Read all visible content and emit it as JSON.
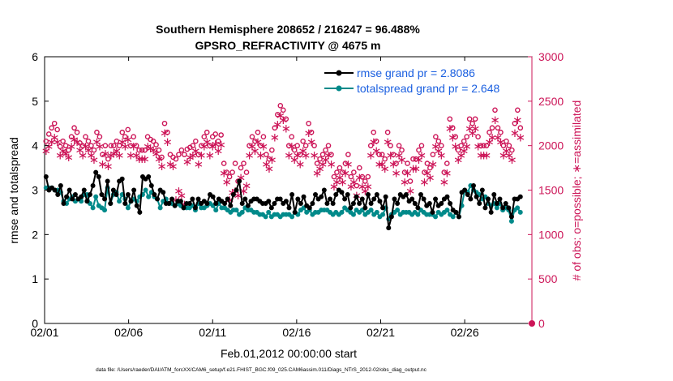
{
  "colors": {
    "background": "#ffffff",
    "left_axis": "#000000",
    "right_axis": "#cc1457",
    "rmse_line": "#000000",
    "spread_line": "#008a8a",
    "obs_marker": "#cc1457",
    "legend_text": "#1a5fe0"
  },
  "chart_data": {
    "type": "line",
    "title_line1": "Southern Hemisphere 208652 / 216247 = 96.488%",
    "title_line2": "GPSRO_REFRACTIVITY @ 4675 m",
    "xlabel": "Feb.01,2012 00:00:00 start",
    "ylabel_left": "rmse and totalspread",
    "ylabel_right": "# of obs: o=possible; ∗=assimilated",
    "footer": "data file: /Users/raeder/DAI/ATM_forcXX/CAM6_setup/f.e21.FHIST_BGC.f09_025.CAM6assim.011/Diags_NTrS_2012-02/obs_diag_output.nc",
    "xlim": [
      0,
      29
    ],
    "ylim_left": [
      0,
      6
    ],
    "ylim_right": [
      0,
      3000
    ],
    "grid": false,
    "legend_position": "top-right",
    "x_tick_values": [
      0,
      5,
      10,
      15,
      20,
      25
    ],
    "x_tick_labels": [
      "02/01",
      "02/06",
      "02/11",
      "02/16",
      "02/21",
      "02/26"
    ],
    "y_left_ticks": [
      "0",
      "1",
      "2",
      "3",
      "4",
      "5",
      "6"
    ],
    "y_right_ticks": [
      "0",
      "500",
      "1000",
      "1500",
      "2000",
      "2500",
      "3000"
    ],
    "series": [
      {
        "name": "rmse grand pr = 2.8086",
        "axis": "left",
        "marker": "filled-circle",
        "values": [
          3.3,
          3.0,
          3.05,
          3.0,
          2.9,
          3.1,
          2.7,
          2.85,
          3.0,
          2.8,
          2.9,
          2.8,
          2.85,
          3.0,
          2.75,
          2.9,
          3.1,
          3.4,
          3.3,
          2.9,
          2.8,
          3.2,
          2.7,
          3.0,
          2.9,
          3.2,
          3.25,
          2.7,
          2.9,
          2.75,
          3.0,
          2.65,
          2.5,
          3.3,
          3.25,
          3.3,
          3.1,
          2.9,
          2.8,
          3.0,
          2.95,
          2.7,
          2.7,
          2.8,
          2.65,
          2.75,
          2.75,
          2.6,
          2.7,
          2.7,
          2.8,
          2.6,
          2.8,
          2.7,
          2.75,
          2.7,
          2.9,
          2.85,
          2.7,
          2.8,
          2.75,
          2.7,
          2.8,
          2.65,
          2.9,
          3.0,
          3.2,
          2.7,
          2.8,
          2.65,
          2.75,
          2.8,
          2.8,
          2.75,
          2.7,
          2.7,
          2.75,
          2.6,
          2.7,
          2.8,
          2.8,
          2.7,
          2.75,
          2.6,
          2.9,
          2.5,
          2.8,
          2.7,
          2.85,
          2.65,
          2.6,
          2.7,
          2.9,
          2.8,
          2.85,
          3.0,
          2.7,
          2.8,
          2.7,
          2.9,
          3.0,
          2.95,
          2.8,
          2.9,
          2.6,
          2.7,
          2.85,
          2.7,
          2.8,
          2.6,
          2.9,
          2.7,
          2.8,
          2.9,
          2.75,
          2.6,
          2.85,
          2.15,
          2.4,
          2.8,
          2.7,
          2.9,
          2.85,
          2.9,
          2.75,
          2.8,
          2.7,
          2.6,
          2.9,
          2.8,
          2.65,
          2.7,
          2.5,
          2.8,
          2.65,
          2.7,
          2.8,
          2.85,
          2.7,
          2.55,
          2.5,
          2.4,
          2.95,
          3.0,
          2.9,
          2.8,
          3.1,
          2.85,
          2.7,
          3.0,
          2.6,
          2.8,
          2.5,
          2.9,
          2.7,
          2.8,
          2.6,
          2.7,
          2.6,
          2.4,
          2.8,
          2.8,
          2.85
        ]
      },
      {
        "name": "totalspread grand pr = 2.648",
        "axis": "left",
        "marker": "filled-circle",
        "values": [
          3.05,
          3.05,
          3.05,
          3.0,
          3.0,
          2.95,
          2.75,
          2.7,
          2.8,
          2.85,
          2.75,
          2.8,
          2.75,
          2.9,
          2.9,
          2.7,
          2.6,
          2.85,
          2.65,
          2.6,
          2.55,
          3.05,
          2.7,
          2.9,
          2.95,
          2.75,
          2.9,
          2.8,
          2.6,
          2.75,
          2.8,
          2.75,
          2.85,
          2.9,
          3.0,
          2.85,
          2.95,
          2.85,
          2.8,
          2.6,
          2.75,
          2.8,
          2.7,
          2.7,
          2.65,
          2.7,
          2.65,
          2.6,
          2.6,
          2.6,
          2.65,
          2.55,
          2.7,
          2.6,
          2.6,
          2.65,
          2.7,
          2.65,
          2.55,
          2.7,
          2.6,
          2.6,
          2.55,
          2.5,
          2.55,
          2.55,
          2.45,
          2.5,
          2.6,
          2.55,
          2.55,
          2.5,
          2.5,
          2.45,
          2.45,
          2.4,
          2.5,
          2.4,
          2.45,
          2.45,
          2.4,
          2.45,
          2.45,
          2.45,
          2.4,
          2.5,
          2.45,
          2.55,
          2.6,
          2.5,
          2.55,
          2.45,
          2.5,
          2.5,
          2.55,
          2.55,
          2.55,
          2.5,
          2.45,
          2.5,
          2.45,
          2.5,
          2.6,
          2.55,
          2.5,
          2.45,
          2.55,
          2.5,
          2.55,
          2.45,
          2.5,
          2.55,
          2.45,
          2.5,
          2.4,
          2.45,
          2.6,
          2.35,
          2.45,
          2.5,
          2.55,
          2.45,
          2.5,
          2.5,
          2.5,
          2.45,
          2.5,
          2.45,
          2.55,
          2.5,
          2.45,
          2.45,
          2.45,
          2.4,
          2.5,
          2.45,
          2.5,
          2.55,
          2.45,
          2.4,
          2.5,
          2.4,
          2.65,
          3.0,
          2.95,
          3.1,
          3.0,
          2.95,
          2.9,
          2.8,
          2.85,
          2.7,
          2.65,
          2.7,
          2.6,
          2.7,
          2.55,
          2.6,
          2.55,
          2.3,
          2.55,
          2.6,
          2.5
        ]
      },
      {
        "name": "possible",
        "axis": "right",
        "marker": "open-circle",
        "values": [
          2050,
          2130,
          2200,
          2250,
          2180,
          1990,
          2050,
          2000,
          1950,
          2100,
          2200,
          2150,
          2030,
          2000,
          2100,
          2050,
          2000,
          1950,
          2150,
          2100,
          1900,
          2000,
          1850,
          2000,
          2000,
          2050,
          2000,
          2150,
          2100,
          2180,
          2000,
          2100,
          2000,
          1950,
          1950,
          1950,
          2100,
          2070,
          2050,
          2010,
          1950,
          1870,
          2250,
          2150,
          1900,
          1870,
          1850,
          1900,
          1950,
          1900,
          1960,
          1980,
          2000,
          2050,
          1900,
          2000,
          2100,
          2150,
          2000,
          2100,
          2130,
          2050,
          2120,
          1800,
          1700,
          1650,
          1700,
          1800,
          1600,
          1750,
          1800,
          1700,
          2000,
          2100,
          2050,
          2150,
          2000,
          2100,
          1900,
          1850,
          1950,
          2200,
          2350,
          2450,
          2400,
          2300,
          2000,
          2100,
          1950,
          2000,
          1900,
          2050,
          2000,
          2250,
          2150,
          2000,
          1800,
          1850,
          1900,
          1950,
          2000,
          1900,
          1650,
          1700,
          1750,
          1700,
          1800,
          1900,
          1650,
          1700,
          1550,
          1750,
          1650,
          1600,
          1650,
          2000,
          2150,
          2050,
          1900,
          1900,
          1850,
          2150,
          2000,
          1900,
          1800,
          2000,
          1950,
          1700,
          1800,
          1600,
          1850,
          1850,
          1950,
          2000,
          1700,
          1800,
          1750,
          1900,
          2100,
          2050,
          2000,
          1700,
          1800,
          2300,
          2200,
          2100,
          1950,
          2000,
          2050,
          2100,
          2300,
          2250,
          2300,
          2100,
          2000,
          2000,
          2000,
          2150,
          2200,
          2400,
          2200,
          2150,
          2000,
          2050,
          2000,
          1950,
          2250,
          2400,
          2200
        ]
      },
      {
        "name": "assimilated",
        "axis": "right",
        "marker": "asterisk",
        "values": [
          1950,
          2000,
          2050,
          2100,
          2050,
          1900,
          1950,
          1920,
          1880,
          2000,
          2080,
          2050,
          1960,
          1900,
          2000,
          1960,
          1900,
          1850,
          2050,
          2000,
          1800,
          1920,
          1780,
          1900,
          1920,
          1950,
          1900,
          2050,
          2000,
          2080,
          1900,
          2000,
          1900,
          1860,
          1860,
          1860,
          2000,
          1980,
          1960,
          1920,
          1860,
          1780,
          2150,
          2050,
          1800,
          1780,
          1400,
          1500,
          1450,
          1350,
          1830,
          1880,
          1900,
          1950,
          1800,
          1900,
          2000,
          2050,
          1900,
          2000,
          2030,
          1950,
          2020,
          1700,
          1600,
          1400,
          1480,
          1500,
          1450,
          1650,
          1500,
          1560,
          1900,
          2000,
          1950,
          2050,
          1900,
          2000,
          1800,
          1750,
          1850,
          2100,
          2250,
          2350,
          2300,
          2200,
          1900,
          2000,
          1850,
          1900,
          1800,
          1950,
          1900,
          2150,
          2050,
          1900,
          1700,
          1750,
          1800,
          1850,
          1900,
          1800,
          1550,
          1600,
          1650,
          1600,
          1700,
          1800,
          1550,
          1600,
          1450,
          1650,
          1550,
          1500,
          1550,
          1900,
          2050,
          1950,
          1800,
          1800,
          1750,
          2050,
          1900,
          1800,
          1700,
          1900,
          1850,
          1600,
          1700,
          1500,
          1750,
          1750,
          1850,
          1900,
          1600,
          1700,
          1650,
          1800,
          2000,
          1950,
          1900,
          1600,
          1700,
          2200,
          2100,
          2000,
          1850,
          1900,
          1950,
          2000,
          2200,
          2150,
          2200,
          2000,
          1900,
          1900,
          1900,
          2050,
          2100,
          2300,
          2100,
          2050,
          1900,
          1950,
          1900,
          1850,
          2150,
          2300,
          2100
        ]
      }
    ],
    "end_marker": {
      "x": 29,
      "y_right": 0
    }
  }
}
